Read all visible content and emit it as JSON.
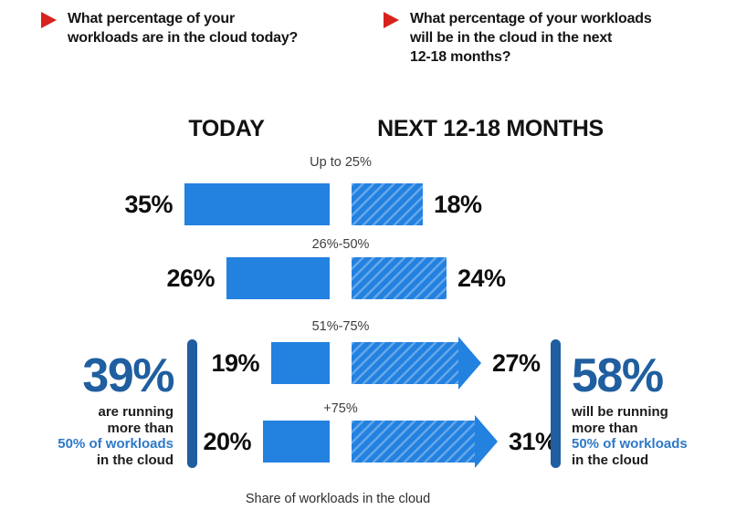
{
  "questions": [
    {
      "lines": [
        "What percentage of your",
        "workloads are in the cloud today?"
      ]
    },
    {
      "lines": [
        "What percentage of your workloads",
        "will be in the cloud in the next",
        "12-18 months?"
      ]
    }
  ],
  "headers": {
    "today": "TODAY",
    "next": "NEXT 12-18 MONTHS"
  },
  "chart_data": {
    "type": "bar",
    "categories": [
      "Up to 25%",
      "26%-50%",
      "51%-75%",
      "+75%"
    ],
    "series": [
      {
        "name": "TODAY",
        "values": [
          35,
          26,
          19,
          20
        ],
        "labels": [
          "35%",
          "26%",
          "19%",
          "20%"
        ],
        "style": "solid"
      },
      {
        "name": "NEXT 12-18 MONTHS",
        "values": [
          18,
          24,
          27,
          31
        ],
        "labels": [
          "18%",
          "24%",
          "27%",
          "31%"
        ],
        "style": "hatched",
        "arrow_categories": [
          "51%-75%",
          "+75%"
        ]
      }
    ],
    "xlabel": "Share of workloads in the cloud",
    "legend_position": "none",
    "grid": false
  },
  "summaries": {
    "left": {
      "value": "39%",
      "lines": [
        {
          "text": "are running",
          "highlight": false
        },
        {
          "text": "more than",
          "highlight": false
        },
        {
          "text": "50% of workloads",
          "highlight": true
        },
        {
          "text": "in the cloud",
          "highlight": false
        }
      ]
    },
    "right": {
      "value": "58%",
      "lines": [
        {
          "text": "will be running",
          "highlight": false
        },
        {
          "text": "more than",
          "highlight": false
        },
        {
          "text": "50% of workloads",
          "highlight": true
        },
        {
          "text": "in the cloud",
          "highlight": false
        }
      ]
    }
  },
  "caption": "Share of workloads in the cloud",
  "colors": {
    "bar_blue": "#2381E0",
    "dark_blue": "#1F5E9F",
    "highlight_blue": "#2D79C7",
    "bullet_red": "#D7221E"
  }
}
